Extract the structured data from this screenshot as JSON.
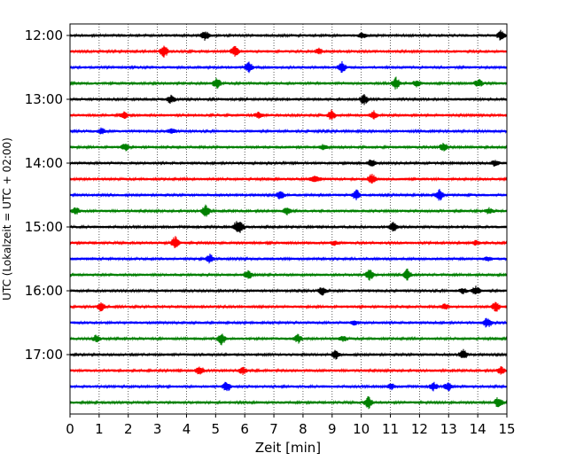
{
  "chart_data": {
    "type": "line",
    "subtype": "helicorder",
    "xlabel": "Zeit  [min]",
    "ylabel": "UTC (Lokalzeit = UTC + 02:00)",
    "xlim": [
      0,
      15
    ],
    "x_ticks": [
      "0",
      "1",
      "2",
      "3",
      "4",
      "5",
      "6",
      "7",
      "8",
      "9",
      "10",
      "11",
      "12",
      "13",
      "14",
      "15"
    ],
    "y_ticks": [
      "12:00",
      "13:00",
      "14:00",
      "15:00",
      "16:00",
      "17:00"
    ],
    "grid": "vertical dotted lines at each minute",
    "trace_start_times_utc": [
      "12:00",
      "12:15",
      "12:30",
      "12:45",
      "13:00",
      "13:15",
      "13:30",
      "13:45",
      "14:00",
      "14:15",
      "14:30",
      "14:45",
      "15:00",
      "15:15",
      "15:30",
      "15:45",
      "16:00",
      "16:15",
      "16:30",
      "16:45",
      "17:00",
      "17:15",
      "17:30",
      "17:45"
    ],
    "trace_colors": [
      "#000000",
      "#ff0000",
      "#0000ff",
      "#008000"
    ],
    "trace_duration_min": 15
  }
}
